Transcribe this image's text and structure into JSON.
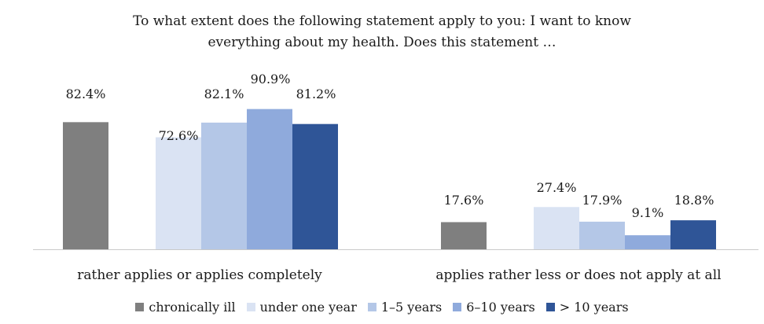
{
  "chart_data": {
    "type": "bar",
    "title_lines": [
      "To what extent does the following statement apply to you: I want to know",
      "everything about my health. Does this statement …"
    ],
    "categories": [
      "rather applies or applies completely",
      "applies rather less or does not apply at all"
    ],
    "series": [
      {
        "name": "chronically ill",
        "color": "#7f7f7f",
        "values": [
          82.4,
          17.6
        ],
        "labels": [
          "82.4%",
          "17.6%"
        ]
      },
      {
        "name": "under one year",
        "color": "#dae3f3",
        "values": [
          72.6,
          27.4
        ],
        "labels": [
          "72.6%",
          "27.4%"
        ]
      },
      {
        "name": "1–5 years",
        "color": "#b4c7e7",
        "values": [
          82.1,
          17.9
        ],
        "labels": [
          "82.1%",
          "17.9%"
        ]
      },
      {
        "name": "6–10 years",
        "color": "#8faadc",
        "values": [
          90.9,
          9.1
        ],
        "labels": [
          "90.9%",
          "9.1%"
        ]
      },
      {
        "name": "> 10 years",
        "color": "#2f5597",
        "values": [
          81.2,
          18.8
        ],
        "labels": [
          "81.2%",
          "18.8%"
        ]
      }
    ],
    "ylim": [
      0,
      100
    ],
    "legend_position": "bottom",
    "grid": false
  }
}
